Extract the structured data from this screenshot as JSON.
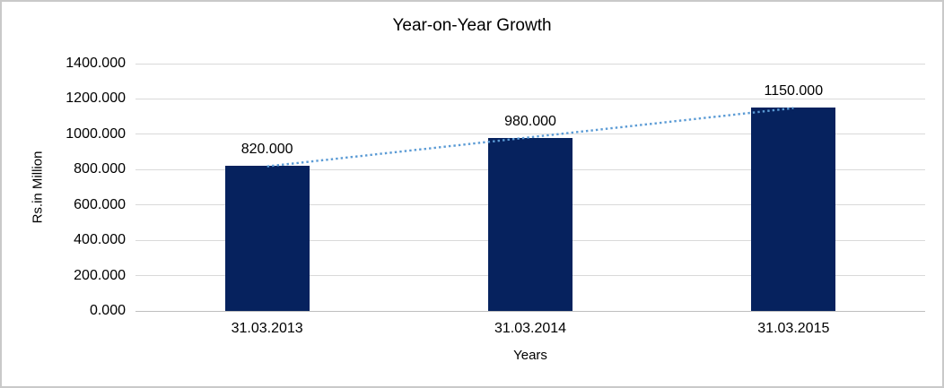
{
  "chart_data": {
    "type": "bar",
    "title": "Year-on-Year Growth",
    "xlabel": "Years",
    "ylabel": "Rs.in Million",
    "categories": [
      "31.03.2013",
      "31.03.2014",
      "31.03.2015"
    ],
    "values": [
      820,
      980,
      1150
    ],
    "data_labels": [
      "820.000",
      "980.000",
      "1150.000"
    ],
    "y_ticks": [
      "1400.000",
      "1200.000",
      "1000.000",
      "800.000",
      "600.000",
      "400.000",
      "200.000",
      "0.000"
    ],
    "ylim": [
      0,
      1400
    ],
    "grid": true,
    "legend": "none",
    "bar_color": "#06225E",
    "gridline_color": "#d9d9d9",
    "trendline": {
      "style": "dotted",
      "color": "#5B9BD5",
      "values": [
        818.33,
        983.33,
        1148.33
      ]
    }
  }
}
